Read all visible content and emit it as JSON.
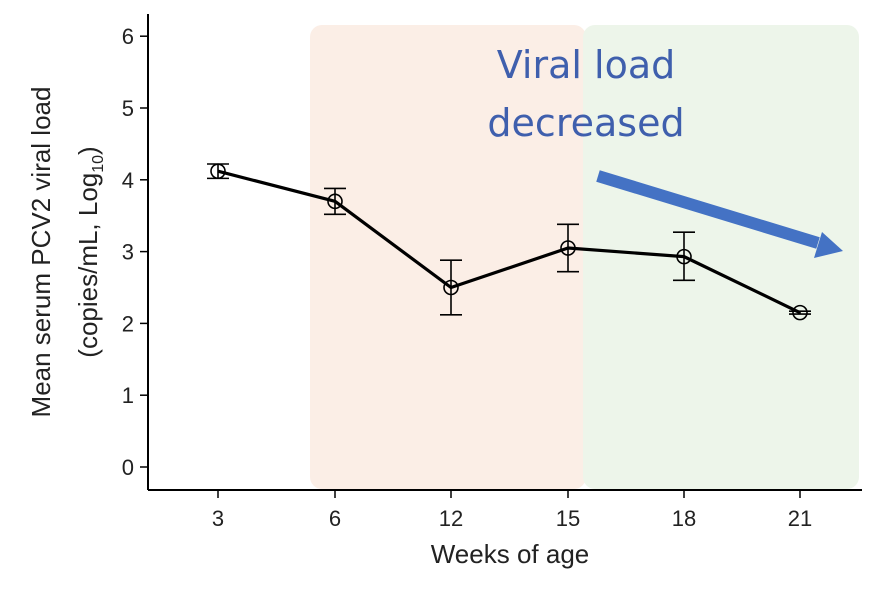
{
  "chart_data": {
    "type": "line",
    "xlabel": "Weeks of age",
    "ylabel_line1": "Mean serum PCV2 viral load",
    "ylabel_line2_prefix": "(copies/mL, Log",
    "ylabel_line2_sub": "10",
    "ylabel_line2_suffix": ")",
    "categories": [
      "3",
      "6",
      "12",
      "15",
      "18",
      "21"
    ],
    "y_ticks": [
      "0",
      "1",
      "2",
      "3",
      "4",
      "5",
      "6"
    ],
    "ylim": [
      -0.3,
      6.3
    ],
    "series": [
      {
        "values": [
          4.12,
          3.7,
          2.5,
          3.05,
          2.93,
          2.15
        ],
        "err_low": [
          4.02,
          3.52,
          2.12,
          2.72,
          2.6,
          2.13
        ],
        "err_high": [
          4.22,
          3.88,
          2.88,
          3.38,
          3.27,
          2.17
        ],
        "color": "#000000"
      }
    ],
    "shaded_regions": [
      {
        "color": "#fbeee6"
      },
      {
        "color": "#edf5ea"
      }
    ],
    "annotation": {
      "line1": "Viral load",
      "line2": "decreased",
      "color": "#3f5fad",
      "arrow_color": "#4472c4"
    },
    "grid": false,
    "legend": "none"
  }
}
